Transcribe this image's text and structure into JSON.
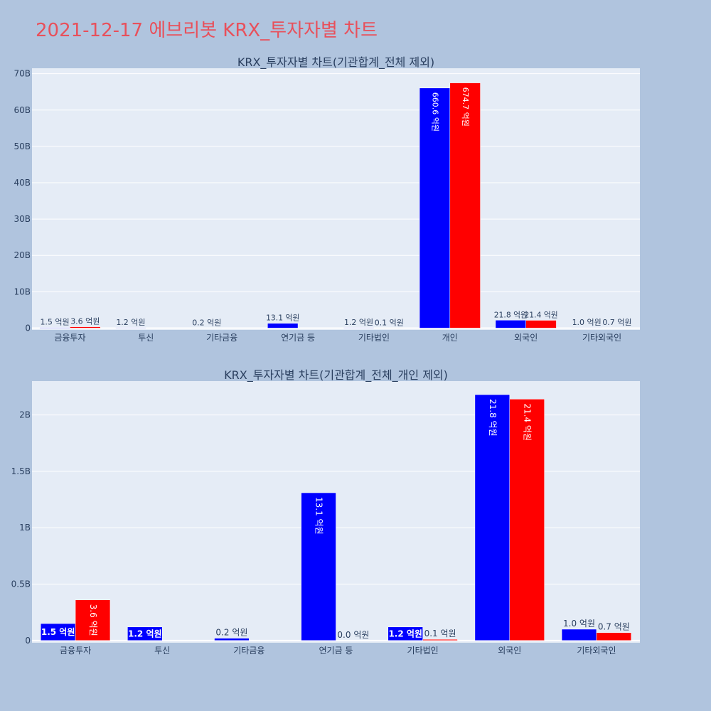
{
  "page": {
    "title": "2021-12-17 에브리봇 KRX_투자자별 차트"
  },
  "colors": {
    "buy": "#0000ff",
    "sell": "#ff0000",
    "plot_bg": "#e5ecf6",
    "page_bg": "#b0c4de",
    "title": "#e8505b"
  },
  "chart_data": [
    {
      "type": "bar",
      "title": "KRX_투자자별 차트(기관합계_전체 제외)",
      "categories": [
        "금융투자",
        "투신",
        "기타금융",
        "연기금 등",
        "기타법인",
        "개인",
        "외국인",
        "기타외국인"
      ],
      "series": [
        {
          "values": [
            0.15,
            0.12,
            0.02,
            1.31,
            0.12,
            66.06,
            2.18,
            0.1
          ],
          "labels": [
            "1.5 억원",
            "1.2 억원",
            "0.2 억원",
            "13.1 억원",
            "1.2 억원",
            "660.6 억원",
            "21.8 억원",
            "1.0 억원"
          ]
        },
        {
          "values": [
            0.36,
            0,
            0,
            0,
            0.01,
            67.47,
            2.14,
            0.07
          ],
          "labels": [
            "3.6 억원",
            "",
            "",
            "",
            "0.1 억원",
            "674.7 억원",
            "21.4 억원",
            "0.7 억원"
          ]
        }
      ],
      "yticks": [
        0,
        10,
        20,
        30,
        40,
        50,
        60,
        70
      ],
      "ytick_labels": [
        "0",
        "10B",
        "20B",
        "30B",
        "40B",
        "50B",
        "60B",
        "70B"
      ],
      "ylim": [
        -0.5,
        71.5
      ],
      "grid": true
    },
    {
      "type": "bar",
      "title": "KRX_투자자별 차트(기관합계_전체_개인 제외)",
      "categories": [
        "금융투자",
        "투신",
        "기타금융",
        "연기금 등",
        "기타법인",
        "외국인",
        "기타외국인"
      ],
      "series": [
        {
          "values": [
            0.15,
            0.12,
            0.02,
            1.31,
            0.12,
            2.18,
            0.1
          ],
          "labels": [
            "1.5 억원",
            "1.2 억원",
            "0.2 억원",
            "13.1 억원",
            "1.2 억원",
            "21.8 억원",
            "1.0 억원"
          ]
        },
        {
          "values": [
            0.36,
            0,
            0,
            0,
            0.01,
            2.14,
            0.07
          ],
          "labels": [
            "3.6 억원",
            "",
            "",
            "0.0 억원",
            "0.1 억원",
            "21.4 억원",
            "0.7 억원"
          ]
        }
      ],
      "yticks": [
        0,
        0.5,
        1,
        1.5,
        2
      ],
      "ytick_labels": [
        "0",
        "0.5B",
        "1B",
        "1.5B",
        "2B"
      ],
      "ylim": [
        -0.02,
        2.3
      ],
      "grid": true
    }
  ]
}
